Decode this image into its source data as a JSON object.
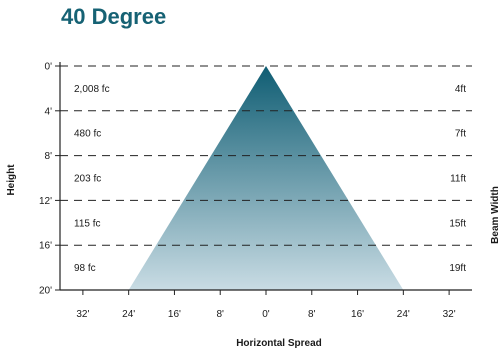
{
  "title": "40 Degree",
  "chart_data": {
    "type": "area",
    "title": "40 Degree",
    "xlabel": "Horizontal Spread",
    "ylabel": "Height",
    "y2label": "Beam Width",
    "beam_angle_deg": 40,
    "x_ticks": [
      "32'",
      "24'",
      "16'",
      "8'",
      "0'",
      "8'",
      "16'",
      "24'",
      "32'"
    ],
    "y_ticks": [
      "0'",
      "4'",
      "8'",
      "12'",
      "16'",
      "20'"
    ],
    "rows": [
      {
        "depth_label": "0'-4'",
        "illuminance": "2,008 fc",
        "beam_width": "4ft"
      },
      {
        "depth_label": "4'-8'",
        "illuminance": "480 fc",
        "beam_width": "7ft"
      },
      {
        "depth_label": "8'-12'",
        "illuminance": "203 fc",
        "beam_width": "11ft"
      },
      {
        "depth_label": "12'-16'",
        "illuminance": "115 fc",
        "beam_width": "15ft"
      },
      {
        "depth_label": "16'-20'",
        "illuminance": "98 fc",
        "beam_width": "19ft"
      }
    ],
    "beam_edge_at_bottom_ft": 24,
    "xlim": [
      -36,
      36
    ],
    "ylim": [
      0,
      20
    ],
    "grid": "dashed horizontal",
    "colors": {
      "cone_top": "#0f5d73",
      "cone_bottom": "#c9dce4",
      "title": "#166274"
    }
  }
}
